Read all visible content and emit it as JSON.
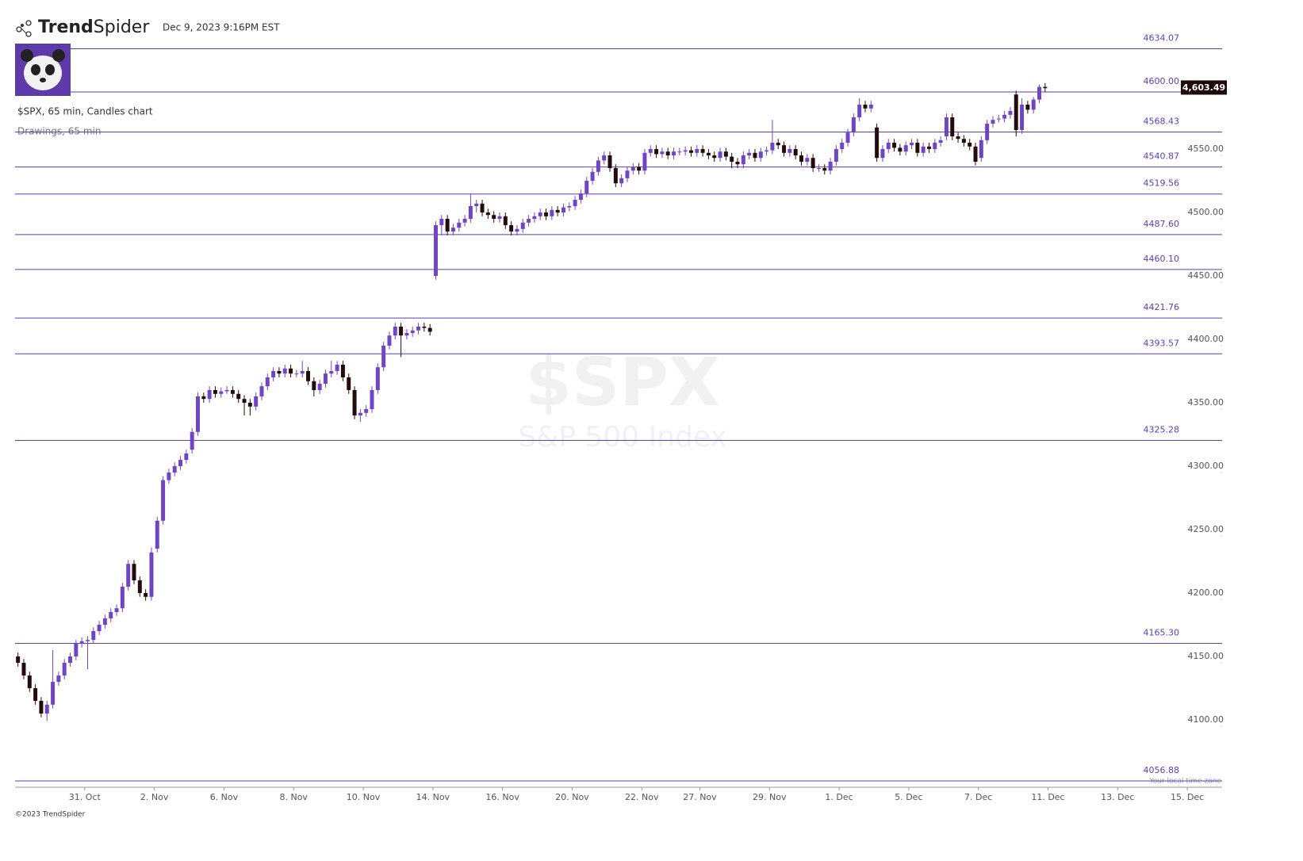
{
  "header": {
    "brand_parts": [
      "Trend",
      "Spider"
    ],
    "timestamp": "Dec 9, 2023 9:16PM EST",
    "chart_info": "$SPX, 65 min, Candles chart",
    "drawings": "Drawings, 65 min",
    "footer": "©2023 TrendSpider"
  },
  "chart_data": {
    "type": "candlestick",
    "watermark": "$SPX",
    "watermark_sub": "S&P 500 Index",
    "timezone_note": "Your local time zone",
    "up_color": "#6f45c4",
    "down_color": "#240c0c",
    "level_color": "#5a3ebd",
    "last_price": {
      "value": 4603.49,
      "label": "4,603.49"
    },
    "xlim": [
      0,
      208
    ],
    "ylim": [
      4053.75,
      4644.375
    ],
    "yticks": [
      {
        "value": 4100,
        "label": "4100.00"
      },
      {
        "value": 4150,
        "label": "4150.00"
      },
      {
        "value": 4200,
        "label": "4200.00"
      },
      {
        "value": 4250,
        "label": "4250.00"
      },
      {
        "value": 4300,
        "label": "4300.00"
      },
      {
        "value": 4350,
        "label": "4350.00"
      },
      {
        "value": 4400,
        "label": "4400.00"
      },
      {
        "value": 4450,
        "label": "4450.00"
      },
      {
        "value": 4500,
        "label": "4500.00"
      },
      {
        "value": 4550,
        "label": "4550.00"
      }
    ],
    "xticks": [
      {
        "value": 12,
        "label": "31. Oct"
      },
      {
        "value": 24,
        "label": "2. Nov"
      },
      {
        "value": 36,
        "label": "6. Nov"
      },
      {
        "value": 48,
        "label": "8. Nov"
      },
      {
        "value": 60,
        "label": "10. Nov"
      },
      {
        "value": 72,
        "label": "14. Nov"
      },
      {
        "value": 84,
        "label": "16. Nov"
      },
      {
        "value": 96,
        "label": "20. Nov"
      },
      {
        "value": 108,
        "label": "22. Nov"
      },
      {
        "value": 118,
        "label": "27. Nov"
      },
      {
        "value": 130,
        "label": "29. Nov"
      },
      {
        "value": 142,
        "label": "1. Dec"
      },
      {
        "value": 154,
        "label": "5. Dec"
      },
      {
        "value": 166,
        "label": "7. Dec"
      },
      {
        "value": 178,
        "label": "11. Dec"
      },
      {
        "value": 190,
        "label": "13. Dec"
      },
      {
        "value": 202,
        "label": "15. Dec"
      }
    ],
    "levels": [
      4634.07,
      {
        "value": 4600,
        "label": "4600.00"
      },
      4568.43,
      4540.87,
      4519.56,
      {
        "value": 4487.6,
        "label": "4487.60"
      },
      {
        "value": 4460.1,
        "label": "4460.10"
      },
      4421.76,
      4393.57,
      4325.28,
      {
        "value": 4165.3,
        "label": "4165.30"
      },
      4056.88
    ],
    "ohlc": [
      [
        4155,
        4158,
        4147,
        4150
      ],
      [
        4150,
        4153,
        4137,
        4140
      ],
      [
        4140,
        4143,
        4127,
        4130
      ],
      [
        4130,
        4133,
        4117,
        4120
      ],
      [
        4120,
        4123,
        4107,
        4110
      ],
      [
        4110,
        4120,
        4104,
        4117
      ],
      [
        4117,
        4160,
        4114,
        4135
      ],
      [
        4135,
        4143,
        4132,
        4140
      ],
      [
        4140,
        4153,
        4137,
        4150
      ],
      [
        4150,
        4158,
        4147,
        4155
      ],
      [
        4155,
        4168,
        4152,
        4165
      ],
      [
        4165,
        4170,
        4162,
        4167
      ],
      [
        4167,
        4171,
        4145,
        4168
      ],
      [
        4168,
        4178,
        4165,
        4175
      ],
      [
        4175,
        4183,
        4172,
        4180
      ],
      [
        4180,
        4188,
        4177,
        4185
      ],
      [
        4185,
        4193,
        4182,
        4190
      ],
      [
        4190,
        4196,
        4187,
        4193
      ],
      [
        4193,
        4213,
        4190,
        4210
      ],
      [
        4210,
        4231,
        4207,
        4228
      ],
      [
        4228,
        4231,
        4212,
        4215
      ],
      [
        4215,
        4218,
        4202,
        4205
      ],
      [
        4205,
        4208,
        4199,
        4202
      ],
      [
        4202,
        4241,
        4199,
        4237
      ],
      [
        4240,
        4265,
        4237,
        4262
      ],
      [
        4262,
        4297,
        4259,
        4294
      ],
      [
        4294,
        4303,
        4291,
        4300
      ],
      [
        4300,
        4308,
        4297,
        4305
      ],
      [
        4305,
        4313,
        4302,
        4310
      ],
      [
        4310,
        4318,
        4307,
        4315
      ],
      [
        4318,
        4335,
        4315,
        4332
      ],
      [
        4332,
        4363,
        4329,
        4360
      ],
      [
        4360,
        4363,
        4355,
        4358
      ],
      [
        4358,
        4368,
        4355,
        4365
      ],
      [
        4365,
        4368,
        4359,
        4362
      ],
      [
        4362,
        4367,
        4359,
        4364
      ],
      [
        4364,
        4368,
        4362,
        4365
      ],
      [
        4365,
        4368,
        4359,
        4362
      ],
      [
        4362,
        4365,
        4355,
        4358
      ],
      [
        4358,
        4361,
        4345,
        4355
      ],
      [
        4355,
        4358,
        4345,
        4352
      ],
      [
        4352,
        4363,
        4349,
        4360
      ],
      [
        4360,
        4371,
        4357,
        4368
      ],
      [
        4368,
        4378,
        4365,
        4375
      ],
      [
        4375,
        4383,
        4372,
        4380
      ],
      [
        4380,
        4383,
        4375,
        4378
      ],
      [
        4378,
        4385,
        4375,
        4382
      ],
      [
        4382,
        4385,
        4375,
        4378
      ],
      [
        4378,
        4381,
        4375,
        4378
      ],
      [
        4378,
        4388,
        4375,
        4380
      ],
      [
        4380,
        4383,
        4369,
        4372
      ],
      [
        4372,
        4375,
        4360,
        4365
      ],
      [
        4365,
        4373,
        4362,
        4370
      ],
      [
        4370,
        4381,
        4367,
        4378
      ],
      [
        4378,
        4388,
        4375,
        4380
      ],
      [
        4380,
        4388,
        4377,
        4385
      ],
      [
        4385,
        4388,
        4372,
        4375
      ],
      [
        4375,
        4378,
        4362,
        4365
      ],
      [
        4365,
        4368,
        4342,
        4345
      ],
      [
        4345,
        4350,
        4340,
        4347
      ],
      [
        4347,
        4353,
        4344,
        4350
      ],
      [
        4350,
        4368,
        4347,
        4365
      ],
      [
        4365,
        4386,
        4362,
        4383
      ],
      [
        4383,
        4403,
        4380,
        4400
      ],
      [
        4400,
        4411,
        4397,
        4408
      ],
      [
        4408,
        4418,
        4405,
        4415
      ],
      [
        4415,
        4418,
        4391,
        4408
      ],
      [
        4408,
        4413,
        4405,
        4410
      ],
      [
        4410,
        4415,
        4407,
        4412
      ],
      [
        4412,
        4418,
        4409,
        4415
      ],
      [
        4415,
        4418,
        4411,
        4414
      ],
      [
        4414,
        4417,
        4408,
        4411
      ],
      [
        4455,
        4498,
        4452,
        4495
      ],
      [
        4495,
        4503,
        4487,
        4500
      ],
      [
        4500,
        4503,
        4487,
        4490
      ],
      [
        4490,
        4496,
        4487,
        4493
      ],
      [
        4493,
        4500,
        4490,
        4497
      ],
      [
        4497,
        4503,
        4494,
        4500
      ],
      [
        4500,
        4520,
        4497,
        4510
      ],
      [
        4510,
        4515,
        4505,
        4512
      ],
      [
        4512,
        4515,
        4502,
        4505
      ],
      [
        4505,
        4508,
        4500,
        4503
      ],
      [
        4503,
        4506,
        4497,
        4500
      ],
      [
        4500,
        4505,
        4497,
        4502
      ],
      [
        4502,
        4505,
        4492,
        4495
      ],
      [
        4495,
        4498,
        4487,
        4490
      ],
      [
        4490,
        4495,
        4487,
        4492
      ],
      [
        4492,
        4500,
        4489,
        4497
      ],
      [
        4497,
        4503,
        4494,
        4500
      ],
      [
        4500,
        4505,
        4497,
        4502
      ],
      [
        4502,
        4508,
        4499,
        4505
      ],
      [
        4505,
        4508,
        4499,
        4502
      ],
      [
        4502,
        4510,
        4499,
        4507
      ],
      [
        4507,
        4510,
        4502,
        4505
      ],
      [
        4505,
        4512,
        4502,
        4509
      ],
      [
        4509,
        4513,
        4506,
        4510
      ],
      [
        4510,
        4518,
        4507,
        4515
      ],
      [
        4515,
        4523,
        4512,
        4520
      ],
      [
        4520,
        4533,
        4517,
        4530
      ],
      [
        4530,
        4540,
        4527,
        4537
      ],
      [
        4537,
        4549,
        4534,
        4546
      ],
      [
        4546,
        4553,
        4543,
        4550
      ],
      [
        4550,
        4553,
        4537,
        4540
      ],
      [
        4540,
        4543,
        4525,
        4528
      ],
      [
        4528,
        4535,
        4525,
        4532
      ],
      [
        4532,
        4541,
        4529,
        4538
      ],
      [
        4538,
        4544,
        4535,
        4541
      ],
      [
        4541,
        4544,
        4535,
        4538
      ],
      [
        4538,
        4555,
        4535,
        4552
      ],
      [
        4552,
        4558,
        4549,
        4555
      ],
      [
        4555,
        4558,
        4548,
        4551
      ],
      [
        4551,
        4556,
        4548,
        4553
      ],
      [
        4553,
        4556,
        4547,
        4550
      ],
      [
        4550,
        4556,
        4547,
        4553
      ],
      [
        4553,
        4556,
        4550,
        4553
      ],
      [
        4553,
        4557,
        4550,
        4554
      ],
      [
        4554,
        4557,
        4549,
        4552
      ],
      [
        4552,
        4558,
        4549,
        4555
      ],
      [
        4555,
        4558,
        4549,
        4552
      ],
      [
        4552,
        4555,
        4547,
        4550
      ],
      [
        4550,
        4553,
        4545,
        4548
      ],
      [
        4548,
        4556,
        4545,
        4553
      ],
      [
        4553,
        4556,
        4546,
        4549
      ],
      [
        4549,
        4552,
        4540,
        4545
      ],
      [
        4545,
        4548,
        4540,
        4543
      ],
      [
        4543,
        4553,
        4540,
        4550
      ],
      [
        4550,
        4555,
        4547,
        4552
      ],
      [
        4552,
        4555,
        4545,
        4548
      ],
      [
        4548,
        4556,
        4545,
        4553
      ],
      [
        4553,
        4557,
        4550,
        4554
      ],
      [
        4554,
        4578,
        4551,
        4560
      ],
      [
        4560,
        4563,
        4555,
        4558
      ],
      [
        4558,
        4561,
        4549,
        4552
      ],
      [
        4552,
        4558,
        4549,
        4555
      ],
      [
        4555,
        4558,
        4547,
        4550
      ],
      [
        4550,
        4553,
        4542,
        4545
      ],
      [
        4545,
        4551,
        4542,
        4548
      ],
      [
        4548,
        4551,
        4537,
        4540
      ],
      [
        4540,
        4543,
        4537,
        4540
      ],
      [
        4540,
        4543,
        4535,
        4538
      ],
      [
        4538,
        4548,
        4535,
        4545
      ],
      [
        4545,
        4558,
        4542,
        4555
      ],
      [
        4555,
        4563,
        4552,
        4560
      ],
      [
        4560,
        4571,
        4557,
        4568
      ],
      [
        4568,
        4583,
        4565,
        4580
      ],
      [
        4580,
        4595,
        4577,
        4590
      ],
      [
        4590,
        4593,
        4584,
        4587
      ],
      [
        4587,
        4593,
        4584,
        4590
      ],
      [
        4572,
        4575,
        4545,
        4548
      ],
      [
        4548,
        4558,
        4545,
        4555
      ],
      [
        4555,
        4563,
        4552,
        4560
      ],
      [
        4560,
        4563,
        4553,
        4556
      ],
      [
        4556,
        4559,
        4550,
        4553
      ],
      [
        4553,
        4561,
        4550,
        4558
      ],
      [
        4558,
        4563,
        4555,
        4560
      ],
      [
        4560,
        4563,
        4549,
        4552
      ],
      [
        4552,
        4560,
        4549,
        4557
      ],
      [
        4557,
        4560,
        4552,
        4555
      ],
      [
        4555,
        4563,
        4552,
        4560
      ],
      [
        4560,
        4565,
        4557,
        4562
      ],
      [
        4565,
        4583,
        4562,
        4580
      ],
      [
        4580,
        4583,
        4562,
        4565
      ],
      [
        4565,
        4568,
        4560,
        4563
      ],
      [
        4563,
        4566,
        4557,
        4560
      ],
      [
        4560,
        4563,
        4554,
        4557
      ],
      [
        4557,
        4560,
        4542,
        4545
      ],
      [
        4548,
        4565,
        4545,
        4562
      ],
      [
        4562,
        4578,
        4559,
        4575
      ],
      [
        4575,
        4581,
        4572,
        4578
      ],
      [
        4579,
        4582,
        4576,
        4579
      ],
      [
        4579,
        4585,
        4576,
        4582
      ],
      [
        4582,
        4588,
        4579,
        4585
      ],
      [
        4598,
        4601,
        4565,
        4570
      ],
      [
        4570,
        4595,
        4567,
        4590
      ],
      [
        4590,
        4593,
        4583,
        4586
      ],
      [
        4586,
        4596,
        4583,
        4594
      ],
      [
        4594,
        4606,
        4591,
        4604
      ],
      [
        4604,
        4607,
        4600,
        4603
      ]
    ]
  }
}
